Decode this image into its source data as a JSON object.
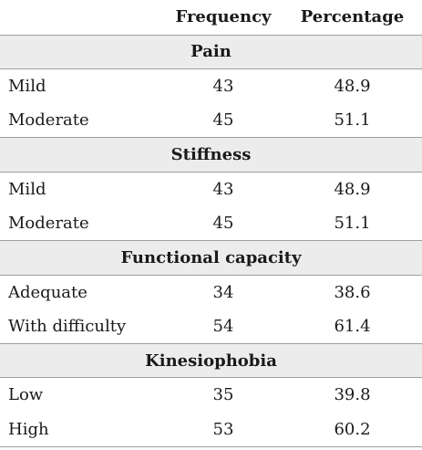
{
  "table": {
    "headers": [
      "",
      "Frequency",
      "Percentage"
    ],
    "sections": [
      {
        "title": "Pain",
        "rows": [
          {
            "label": "Mild",
            "frequency": "43",
            "percentage": "48.9"
          },
          {
            "label": "Moderate",
            "frequency": "45",
            "percentage": "51.1"
          }
        ]
      },
      {
        "title": "Stiffness",
        "rows": [
          {
            "label": "Mild",
            "frequency": "43",
            "percentage": "48.9"
          },
          {
            "label": "Moderate",
            "frequency": "45",
            "percentage": "51.1"
          }
        ]
      },
      {
        "title": "Functional capacity",
        "rows": [
          {
            "label": "Adequate",
            "frequency": "34",
            "percentage": "38.6"
          },
          {
            "label": "With difficulty",
            "frequency": "54",
            "percentage": "61.4"
          }
        ]
      },
      {
        "title": "Kinesiophobia",
        "rows": [
          {
            "label": "Low",
            "frequency": "35",
            "percentage": "39.8"
          },
          {
            "label": "High",
            "frequency": "53",
            "percentage": "60.2"
          }
        ]
      }
    ]
  }
}
